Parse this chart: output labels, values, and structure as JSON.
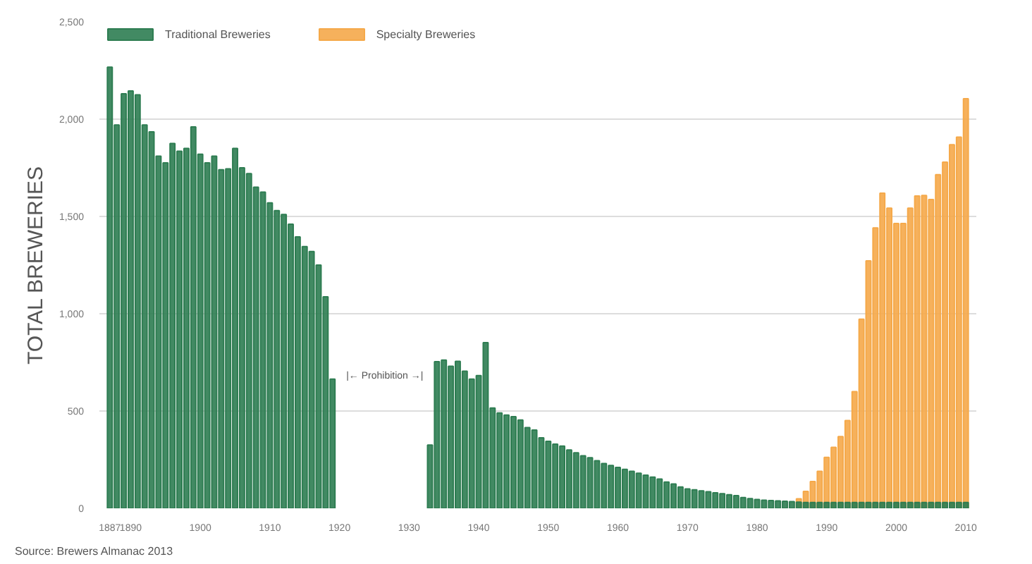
{
  "chart_data": {
    "type": "bar",
    "ylabel": "TOTAL BREWERIES",
    "xlim": [
      1885.5,
      2011.5
    ],
    "xticks": [
      1887,
      1890,
      1900,
      1910,
      1920,
      1930,
      1940,
      1950,
      1960,
      1970,
      1980,
      1990,
      2000,
      2010
    ],
    "ylim": [
      0,
      2500
    ],
    "yticks": [
      {
        "value": 0,
        "label": "0"
      },
      {
        "value": 500,
        "label": "500"
      },
      {
        "value": 1000,
        "label": "1,000"
      },
      {
        "value": 1500,
        "label": "1,500"
      },
      {
        "value": 2000,
        "label": "2,000"
      },
      {
        "value": 2500,
        "label": "2,500"
      }
    ],
    "grid": "y",
    "legend": "top left",
    "series": [
      {
        "name": "Traditional Breweries",
        "color": "#2e7d52",
        "x": [
          1887,
          1888,
          1889,
          1890,
          1891,
          1892,
          1893,
          1894,
          1895,
          1896,
          1897,
          1898,
          1899,
          1900,
          1901,
          1902,
          1903,
          1904,
          1905,
          1906,
          1907,
          1908,
          1909,
          1910,
          1911,
          1912,
          1913,
          1914,
          1915,
          1916,
          1917,
          1918,
          1919,
          1933,
          1934,
          1935,
          1936,
          1937,
          1938,
          1939,
          1940,
          1941,
          1942,
          1943,
          1944,
          1945,
          1946,
          1947,
          1948,
          1949,
          1950,
          1951,
          1952,
          1953,
          1954,
          1955,
          1956,
          1957,
          1958,
          1959,
          1960,
          1961,
          1962,
          1963,
          1964,
          1965,
          1966,
          1967,
          1968,
          1969,
          1970,
          1971,
          1972,
          1973,
          1974,
          1975,
          1976,
          1977,
          1978,
          1979,
          1980,
          1981,
          1982,
          1983,
          1984,
          1985,
          1986,
          1987,
          1988,
          1989,
          1990,
          1991,
          1992,
          1993,
          1994,
          1995,
          1996,
          1997,
          1998,
          1999,
          2000,
          2001,
          2002,
          2003,
          2004,
          2005,
          2006,
          2007,
          2008,
          2009,
          2010
        ],
        "values": [
          2267,
          1970,
          2130,
          2145,
          2125,
          1970,
          1935,
          1810,
          1775,
          1875,
          1835,
          1850,
          1960,
          1820,
          1775,
          1810,
          1740,
          1745,
          1850,
          1750,
          1720,
          1650,
          1625,
          1570,
          1530,
          1510,
          1460,
          1395,
          1345,
          1320,
          1250,
          1087,
          664,
          325,
          754,
          762,
          730,
          755,
          705,
          664,
          682,
          851,
          515,
          490,
          479,
          471,
          454,
          415,
          402,
          362,
          344,
          330,
          320,
          300,
          285,
          270,
          260,
          245,
          230,
          220,
          210,
          200,
          190,
          180,
          170,
          160,
          150,
          135,
          125,
          110,
          100,
          95,
          90,
          85,
          80,
          75,
          70,
          65,
          55,
          50,
          45,
          42,
          40,
          38,
          36,
          34,
          32,
          30,
          30,
          30,
          30,
          30,
          30,
          30,
          30,
          30,
          30,
          30,
          30,
          30,
          30,
          30,
          30,
          30,
          30,
          30,
          30,
          30,
          30,
          30,
          30
        ]
      },
      {
        "name": "Specialty Breweries",
        "color": "#f5a94a",
        "x": [
          1986,
          1987,
          1988,
          1989,
          1990,
          1991,
          1992,
          1993,
          1994,
          1995,
          1996,
          1997,
          1998,
          1999,
          2000,
          2001,
          2002,
          2003,
          2004,
          2005,
          2006,
          2007,
          2008,
          2009,
          2010
        ],
        "values": [
          49,
          87,
          138,
          190,
          262,
          313,
          369,
          451,
          600,
          972,
          1272,
          1441,
          1620,
          1543,
          1464,
          1464,
          1543,
          1605,
          1608,
          1587,
          1715,
          1779,
          1869,
          1908,
          2105
        ]
      }
    ],
    "annotations": [
      "|← Prohibition →|",
      "Source: Brewers Almanac 2013"
    ]
  }
}
